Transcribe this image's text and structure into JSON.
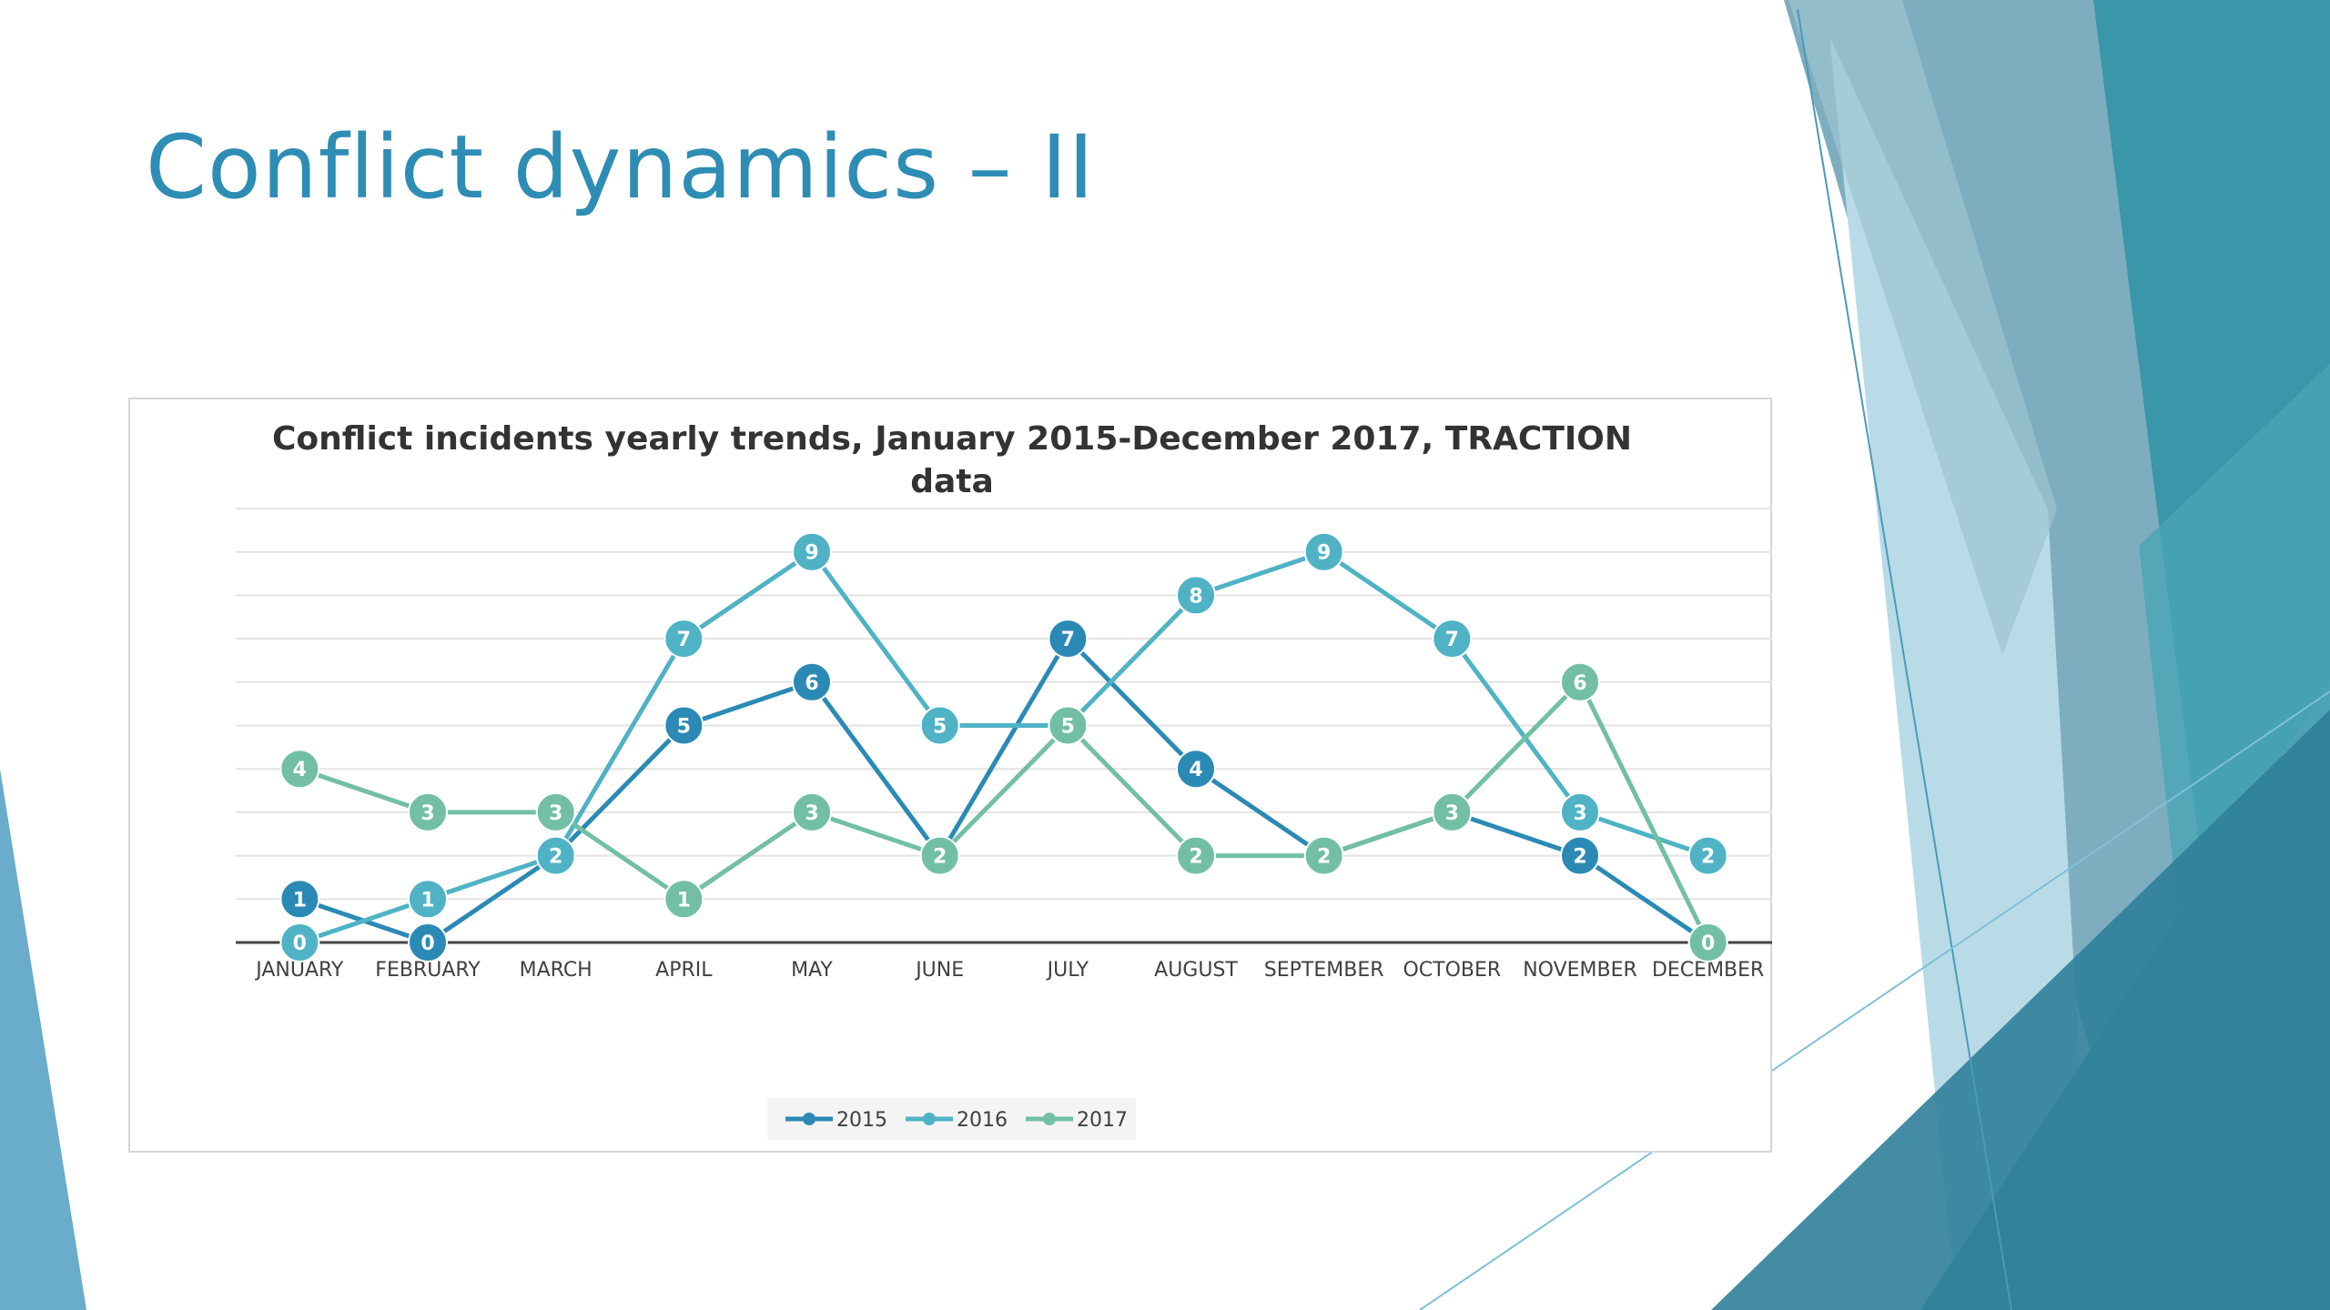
{
  "slide": {
    "title": "Conflict dynamics – II"
  },
  "theme": {
    "title_color": "#2e8db4",
    "decor_colors": [
      "#2b7f99",
      "#3c93a6",
      "#5fa7c3",
      "#8fc3da",
      "#b8dbe9",
      "#4aa3b2"
    ]
  },
  "chart_data": {
    "type": "line",
    "title_lines": [
      "Conflict incidents yearly trends, January 2015-December 2017, TRACTION",
      "data"
    ],
    "categories": [
      "JANUARY",
      "FEBRUARY",
      "MARCH",
      "APRIL",
      "MAY",
      "JUNE",
      "JULY",
      "AUGUST",
      "SEPTEMBER",
      "OCTOBER",
      "NOVEMBER",
      "DECEMBER"
    ],
    "ylim": [
      0,
      10
    ],
    "grid": true,
    "legend_position": "bottom",
    "series": [
      {
        "name": "2015",
        "color": "#2b8ab5",
        "values": [
          1,
          0,
          2,
          5,
          6,
          2,
          7,
          4,
          2,
          3,
          2,
          0
        ]
      },
      {
        "name": "2016",
        "color": "#4fb3c5",
        "values": [
          0,
          1,
          2,
          7,
          9,
          5,
          5,
          8,
          9,
          7,
          3,
          2
        ]
      },
      {
        "name": "2017",
        "color": "#72bfa5",
        "values": [
          4,
          3,
          3,
          1,
          3,
          2,
          5,
          2,
          2,
          3,
          6,
          0
        ]
      }
    ]
  }
}
